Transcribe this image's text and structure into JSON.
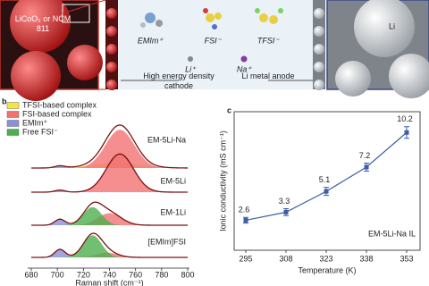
{
  "schematic": {
    "cathode_material": "LiCoO₂ or NCM 811",
    "ions": [
      "EMIm⁺",
      "FSI⁻",
      "TFSI⁻",
      "Li⁺",
      "Na⁺"
    ],
    "cathode_label": "High energy density cathode",
    "anode_label": "Li metal anode",
    "anode_material": "Li"
  },
  "chart_data": [
    {
      "type": "spectra",
      "panel": "b",
      "xlabel": "Raman shift (cm⁻¹)",
      "xlim": [
        680,
        800
      ],
      "xticks": [
        680,
        700,
        720,
        740,
        760,
        780,
        800
      ],
      "categories": [
        "EM-5Li-Na",
        "EM-5Li",
        "EM-1Li",
        "[EMIm]FSI"
      ],
      "fit_color": "#7a1010",
      "series": [
        {
          "name": "TFSI-based complex",
          "color": "#f2e640",
          "center": [
            745,
            null,
            null,
            null
          ],
          "width": [
            18,
            null,
            null,
            null
          ],
          "height": [
            0.12,
            null,
            null,
            null
          ]
        },
        {
          "name": "FSI-based complex",
          "color": "#f27272",
          "center": [
            748,
            748,
            740,
            738
          ],
          "width": [
            11,
            10.5,
            9,
            8
          ],
          "height": [
            0.95,
            0.95,
            0.3,
            0.12
          ]
        },
        {
          "name": "EMIm⁺",
          "color": "#8a8fd8",
          "center": [
            702,
            702,
            702,
            702
          ],
          "width": [
            4,
            4,
            4,
            4
          ],
          "height": [
            0.05,
            0.05,
            0.15,
            0.2
          ]
        },
        {
          "name": "Free FSI⁻",
          "color": "#4caf50",
          "center": [
            null,
            null,
            727,
            727
          ],
          "width": [
            null,
            null,
            7,
            7
          ],
          "height": [
            null,
            null,
            0.45,
            0.55
          ]
        }
      ]
    },
    {
      "type": "line",
      "panel": "c",
      "xlabel": "Temperature (K)",
      "ylabel": "Ionic conductivity (mS cm⁻¹)",
      "annotation": "EM-5Li-Na IL",
      "categories": [
        "295",
        "308",
        "323",
        "338",
        "353"
      ],
      "ylim": [
        0,
        12
      ],
      "series": [
        {
          "color": "#3b5ea6",
          "values": [
            2.6,
            3.3,
            5.1,
            7.2,
            10.2
          ],
          "errors": [
            0.25,
            0.3,
            0.35,
            0.35,
            0.5
          ]
        }
      ]
    }
  ]
}
